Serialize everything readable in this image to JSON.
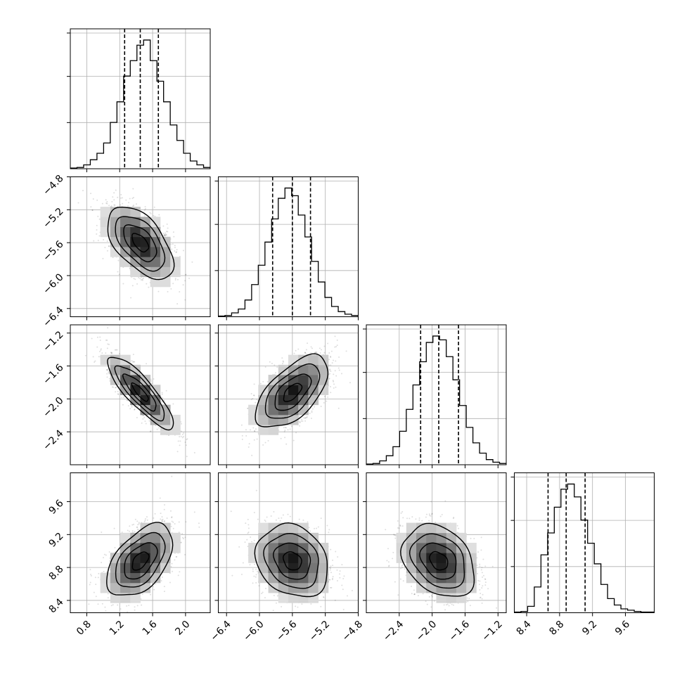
{
  "chart_data": {
    "type": "corner",
    "parameters": [
      {
        "range": [
          0.6,
          2.3
        ],
        "ticks": [
          "0.8",
          "1.2",
          "1.6",
          "2.0"
        ],
        "quantiles": [
          1.26,
          1.45,
          1.67
        ],
        "mean": 1.45,
        "sd": 0.2
      },
      {
        "range": [
          -6.5,
          -4.8
        ],
        "ticks": [
          "−6.4",
          "−6.0",
          "−5.6",
          "−5.2",
          "−4.8"
        ],
        "quantiles": [
          -5.84,
          -5.6,
          -5.38
        ],
        "mean": -5.6,
        "sd": 0.22
      },
      {
        "range": [
          -2.8,
          -1.1
        ],
        "ticks": [
          "−2.4",
          "−2.0",
          "−1.6",
          "−1.2"
        ],
        "quantiles": [
          -2.14,
          -1.92,
          -1.68
        ],
        "mean": -1.92,
        "sd": 0.22
      },
      {
        "range": [
          8.25,
          9.95
        ],
        "ticks": [
          "8.4",
          "8.8",
          "9.2",
          "9.6"
        ],
        "quantiles": [
          8.66,
          8.88,
          9.11
        ],
        "mean": 8.88,
        "sd": 0.22
      }
    ],
    "correlations": [
      [
        1,
        -0.55,
        -0.85,
        0.5
      ],
      [
        -0.55,
        1,
        0.6,
        -0.2
      ],
      [
        -0.85,
        0.6,
        1,
        -0.3
      ],
      [
        0.5,
        -0.2,
        -0.3,
        1
      ]
    ],
    "histograms": [
      [
        0.5,
        1,
        3,
        7,
        12,
        20,
        36,
        52,
        72,
        84,
        96,
        100,
        84,
        68,
        52,
        34,
        22,
        12,
        6,
        3,
        1
      ],
      [
        0.5,
        1,
        3,
        6,
        13,
        25,
        40,
        58,
        76,
        92,
        100,
        94,
        79,
        62,
        43,
        27,
        15,
        8,
        4,
        2,
        1
      ],
      [
        0.5,
        1,
        3,
        7,
        14,
        26,
        43,
        62,
        80,
        95,
        100,
        97,
        84,
        66,
        46,
        29,
        17,
        9,
        4,
        2,
        1
      ],
      [
        0.5,
        1,
        5,
        20,
        45,
        62,
        82,
        96,
        100,
        90,
        72,
        54,
        38,
        22,
        11,
        6,
        3,
        2,
        1,
        0.5,
        0.5
      ]
    ],
    "contour_levels_sigma": [
      0.5,
      1.0,
      1.5,
      2.0
    ],
    "grid": true,
    "title": "",
    "xlabel": "",
    "ylabel": ""
  }
}
